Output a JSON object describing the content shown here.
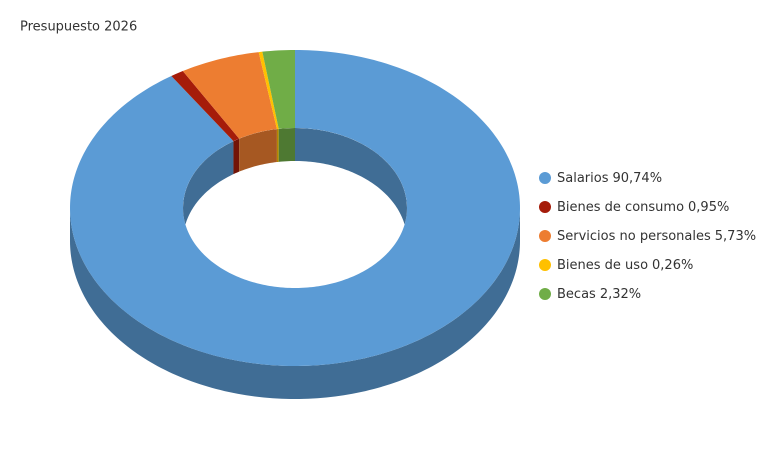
{
  "chart_data": {
    "type": "pie",
    "donut": true,
    "title": "Presupuesto 2026",
    "categories": [
      "Salarios",
      "Bienes de consumo",
      "Servicios no personales",
      "Bienes de uso",
      "Becas"
    ],
    "values": [
      90.74,
      0.95,
      5.73,
      0.26,
      2.32
    ],
    "value_labels": [
      "90,74%",
      "0,95%",
      "5,73%",
      "0,26%",
      "2,32%"
    ],
    "colors": [
      "#5b9bd5",
      "#a51c0a",
      "#ed7d31",
      "#ffc000",
      "#70ad47"
    ],
    "legend": "right"
  }
}
